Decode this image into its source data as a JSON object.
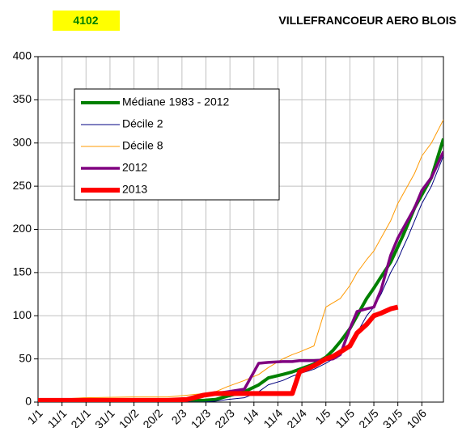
{
  "chart_data": {
    "type": "line",
    "station_code": "4102",
    "title": "VILLEFRANCOEUR AERO BLOIS",
    "x": [
      1,
      20,
      40,
      55,
      63,
      70,
      75,
      80,
      87,
      93,
      97,
      103,
      107,
      110,
      116,
      121,
      124,
      127,
      131,
      134,
      138,
      141,
      144,
      148,
      151,
      153,
      155,
      158,
      161,
      165,
      170
    ],
    "series": [
      {
        "name": "Médiane 1983 - 2012",
        "color": "#008000",
        "width": 4,
        "values": [
          2,
          2,
          2,
          2,
          2,
          2,
          3,
          7,
          12,
          20,
          28,
          32,
          35,
          38,
          44,
          52,
          60,
          70,
          85,
          100,
          120,
          132,
          145,
          162,
          180,
          192,
          205,
          225,
          240,
          260,
          305
        ]
      },
      {
        "name": "Décile 2",
        "color": "#000080",
        "width": 1,
        "values": [
          0,
          0,
          0,
          0,
          0,
          0,
          1,
          3,
          5,
          12,
          20,
          25,
          30,
          33,
          38,
          45,
          50,
          55,
          65,
          80,
          100,
          110,
          125,
          150,
          165,
          178,
          190,
          210,
          230,
          250,
          285
        ]
      },
      {
        "name": "Décile 8",
        "color": "#ff9900",
        "width": 1,
        "values": [
          2,
          5,
          6,
          6,
          8,
          10,
          12,
          18,
          25,
          32,
          40,
          50,
          55,
          58,
          65,
          110,
          115,
          120,
          135,
          150,
          165,
          175,
          190,
          210,
          230,
          240,
          250,
          265,
          285,
          300,
          327
        ]
      },
      {
        "name": "2012",
        "color": "#800080",
        "width": 3.5,
        "values": [
          2,
          2,
          2,
          2,
          3,
          8,
          10,
          12,
          15,
          45,
          46,
          47,
          47,
          48,
          48,
          49,
          50,
          55,
          85,
          105,
          108,
          110,
          130,
          170,
          190,
          200,
          210,
          225,
          245,
          260,
          290
        ]
      },
      {
        "name": "2013",
        "color": "#ff0000",
        "width": 6,
        "values": [
          2,
          2,
          2,
          2,
          3,
          8,
          10,
          10,
          10,
          10,
          10,
          10,
          10,
          35,
          42,
          50,
          53,
          58,
          65,
          80,
          90,
          100,
          103,
          108,
          110,
          null,
          null,
          null,
          null,
          null,
          null
        ]
      }
    ],
    "xlim": [
      1,
      170
    ],
    "xticks": [
      {
        "value": 1,
        "label": "1/1"
      },
      {
        "value": 11,
        "label": "11/1"
      },
      {
        "value": 21,
        "label": "21/1"
      },
      {
        "value": 31,
        "label": "31/1"
      },
      {
        "value": 41,
        "label": "10/2"
      },
      {
        "value": 51,
        "label": "20/2"
      },
      {
        "value": 61,
        "label": "2/3"
      },
      {
        "value": 71,
        "label": "12/3"
      },
      {
        "value": 81,
        "label": "22/3"
      },
      {
        "value": 91,
        "label": "1/4"
      },
      {
        "value": 101,
        "label": "11/4"
      },
      {
        "value": 111,
        "label": "21/4"
      },
      {
        "value": 121,
        "label": "1/5"
      },
      {
        "value": 131,
        "label": "11/5"
      },
      {
        "value": 141,
        "label": "21/5"
      },
      {
        "value": 151,
        "label": "31/5"
      },
      {
        "value": 161,
        "label": "10/6"
      }
    ],
    "ylim": [
      0,
      400
    ],
    "yticks": [
      0,
      50,
      100,
      150,
      200,
      250,
      300,
      350,
      400
    ],
    "grid": true
  }
}
